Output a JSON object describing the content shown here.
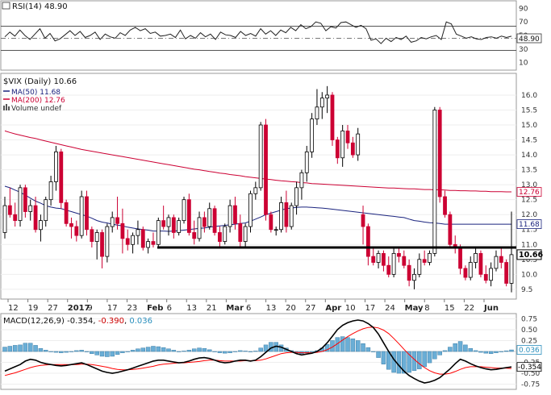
{
  "rsi_panel": {
    "label": "RSI(14) 48.90",
    "levels": [
      "90",
      "70",
      "50",
      "30",
      "10"
    ],
    "current": "48.90"
  },
  "price_panel": {
    "symbol_label": "$VIX (Daily) 10.66",
    "ma50_label": "MA(50) 11.68",
    "ma200_label": "MA(200) 12.76",
    "volume_label": "Volume undef",
    "current_price": "10.66",
    "ma50_value": "11.68",
    "ma200_value": "12.76"
  },
  "macd_panel": {
    "label_prefix": "MACD(12,26,9) ",
    "macd_value": "-0.354",
    "sep1": ", ",
    "signal_value": "-0.390",
    "sep2": ", ",
    "hist_value": "0.036",
    "current_hist": "0.036",
    "current_macd": "-0.354"
  },
  "date_axis": [
    "12",
    "19",
    "27",
    "2017",
    "9",
    "17",
    "23",
    "Feb",
    "6",
    "13",
    "21",
    "Mar",
    "6",
    "13",
    "20",
    "27",
    "Apr",
    "10",
    "17",
    "24",
    "May",
    "8",
    "15",
    "22",
    "Jun"
  ],
  "colors": {
    "up": "#ffffff",
    "down": "#cc0033",
    "ma50": "#1a237e",
    "ma200": "#cc0033",
    "support": "#000000",
    "hist": "#6aaed6",
    "macd": "#000000",
    "signal": "#ff0000"
  },
  "chart_data": [
    {
      "type": "line",
      "name": "RSI(14)",
      "ylim": [
        0,
        100
      ],
      "ticks": [
        90,
        70,
        50,
        30,
        10
      ],
      "values": [
        48,
        55,
        49,
        58,
        50,
        44,
        52,
        60,
        46,
        53,
        42,
        45,
        51,
        57,
        50,
        56,
        47,
        50,
        55,
        44,
        52,
        48,
        46,
        54,
        50,
        58,
        62,
        57,
        60,
        53,
        55,
        49,
        50,
        52,
        47,
        58,
        45,
        50,
        46,
        54,
        48,
        52,
        44,
        55,
        51,
        50,
        47,
        56,
        50,
        53,
        49,
        60,
        52,
        57,
        50,
        58,
        54,
        62,
        57,
        66,
        60,
        63,
        70,
        68,
        57,
        63,
        61,
        69,
        70,
        66,
        62,
        65,
        60,
        43,
        45,
        38,
        46,
        41,
        47,
        44,
        49,
        40,
        42,
        47,
        45,
        48,
        50,
        44,
        70,
        67,
        52,
        49,
        46,
        48,
        45,
        44,
        47,
        48,
        46,
        49,
        47,
        48.9
      ]
    },
    {
      "type": "candlestick",
      "name": "$VIX (Daily)",
      "ylim": [
        9.2,
        16.7
      ],
      "ticks": [
        9.5,
        10.0,
        10.5,
        11.0,
        11.5,
        12.0,
        12.5,
        13.0,
        13.5,
        14.0,
        14.5,
        15.0,
        15.5,
        16.0
      ],
      "support_level": 10.9,
      "ohlc": [
        [
          11.4,
          12.6,
          11.2,
          12.3
        ],
        [
          12.3,
          12.9,
          11.9,
          12.0
        ],
        [
          12.0,
          12.4,
          11.6,
          11.8
        ],
        [
          11.8,
          13.0,
          11.6,
          12.9
        ],
        [
          12.9,
          13.0,
          11.9,
          12.1
        ],
        [
          12.1,
          12.5,
          11.8,
          12.3
        ],
        [
          12.3,
          12.6,
          11.4,
          11.5
        ],
        [
          11.5,
          12.0,
          11.1,
          11.8
        ],
        [
          11.8,
          12.6,
          11.6,
          12.5
        ],
        [
          12.5,
          13.3,
          12.3,
          13.1
        ],
        [
          13.1,
          14.3,
          12.8,
          14.1
        ],
        [
          14.1,
          14.2,
          12.2,
          12.4
        ],
        [
          12.4,
          12.5,
          11.6,
          11.7
        ],
        [
          11.7,
          11.9,
          11.2,
          11.6
        ],
        [
          11.6,
          11.8,
          11.1,
          11.3
        ],
        [
          11.3,
          12.8,
          11.2,
          12.6
        ],
        [
          12.6,
          12.8,
          11.3,
          11.5
        ],
        [
          11.5,
          11.6,
          10.9,
          11.1
        ],
        [
          11.1,
          11.5,
          10.5,
          11.4
        ],
        [
          11.4,
          11.5,
          10.2,
          10.6
        ],
        [
          10.6,
          11.7,
          10.4,
          11.6
        ],
        [
          11.6,
          12.1,
          11.4,
          11.9
        ],
        [
          11.9,
          12.6,
          11.5,
          11.7
        ],
        [
          11.7,
          12.2,
          10.7,
          11.2
        ],
        [
          11.2,
          11.5,
          10.8,
          11.0
        ],
        [
          11.0,
          11.4,
          10.7,
          11.3
        ],
        [
          11.3,
          11.8,
          11.0,
          11.5
        ],
        [
          11.5,
          11.6,
          10.8,
          10.9
        ],
        [
          10.9,
          11.2,
          10.7,
          11.1
        ],
        [
          11.1,
          11.4,
          10.9,
          11.0
        ],
        [
          11.0,
          11.9,
          10.9,
          11.8
        ],
        [
          11.8,
          12.3,
          11.5,
          11.6
        ],
        [
          11.6,
          12.0,
          11.3,
          11.9
        ],
        [
          11.9,
          12.0,
          11.2,
          11.4
        ],
        [
          11.4,
          11.9,
          11.3,
          11.8
        ],
        [
          11.8,
          12.6,
          11.7,
          12.5
        ],
        [
          12.5,
          12.7,
          11.3,
          11.4
        ],
        [
          11.4,
          11.8,
          11.0,
          11.2
        ],
        [
          11.2,
          12.1,
          11.1,
          11.9
        ],
        [
          11.9,
          12.1,
          11.4,
          11.6
        ],
        [
          11.6,
          12.4,
          11.5,
          12.2
        ],
        [
          12.2,
          12.3,
          11.3,
          11.4
        ],
        [
          11.4,
          11.6,
          10.9,
          11.1
        ],
        [
          11.1,
          11.7,
          11.0,
          11.6
        ],
        [
          11.6,
          12.5,
          11.4,
          12.3
        ],
        [
          12.3,
          12.6,
          11.5,
          11.7
        ],
        [
          11.7,
          12.0,
          10.9,
          11.1
        ],
        [
          11.1,
          11.7,
          10.9,
          11.6
        ],
        [
          11.6,
          12.8,
          11.4,
          12.7
        ],
        [
          12.7,
          13.1,
          12.5,
          12.9
        ],
        [
          12.9,
          15.1,
          12.8,
          15.0
        ],
        [
          15.0,
          15.2,
          11.8,
          12.0
        ],
        [
          12.0,
          12.1,
          11.4,
          11.5
        ],
        [
          11.5,
          11.6,
          11.3,
          11.5
        ],
        [
          11.5,
          12.6,
          11.4,
          12.4
        ],
        [
          12.4,
          12.8,
          11.4,
          11.6
        ],
        [
          11.6,
          12.4,
          11.5,
          12.3
        ],
        [
          12.3,
          13.1,
          12.0,
          12.9
        ],
        [
          12.9,
          13.5,
          12.5,
          13.4
        ],
        [
          13.4,
          14.3,
          13.1,
          14.1
        ],
        [
          14.1,
          15.4,
          13.9,
          15.2
        ],
        [
          15.2,
          16.2,
          15.0,
          15.6
        ],
        [
          15.6,
          16.1,
          15.2,
          15.9
        ],
        [
          15.9,
          16.3,
          15.4,
          16.0
        ],
        [
          16.0,
          16.1,
          14.3,
          14.5
        ],
        [
          14.5,
          14.6,
          13.7,
          13.9
        ],
        [
          13.9,
          15.0,
          13.6,
          14.8
        ],
        [
          14.8,
          15.0,
          14.2,
          14.4
        ],
        [
          14.4,
          14.6,
          13.9,
          14.0
        ],
        [
          14.0,
          14.9,
          13.8,
          14.7
        ],
        [
          12.0,
          12.3,
          11.0,
          11.6
        ],
        [
          11.6,
          11.7,
          10.3,
          10.6
        ],
        [
          10.6,
          10.9,
          10.3,
          10.4
        ],
        [
          10.4,
          10.8,
          10.2,
          10.7
        ],
        [
          10.7,
          10.8,
          10.1,
          10.3
        ],
        [
          10.3,
          10.6,
          9.9,
          10.0
        ],
        [
          10.0,
          10.9,
          9.9,
          10.7
        ],
        [
          10.7,
          10.9,
          10.4,
          10.6
        ],
        [
          10.6,
          10.8,
          10.2,
          10.3
        ],
        [
          10.3,
          10.5,
          9.6,
          9.8
        ],
        [
          9.8,
          10.2,
          9.5,
          10.0
        ],
        [
          10.0,
          10.7,
          9.9,
          10.5
        ],
        [
          10.5,
          10.8,
          10.3,
          10.4
        ],
        [
          10.4,
          10.8,
          10.3,
          10.7
        ],
        [
          10.7,
          15.6,
          10.6,
          15.5
        ],
        [
          15.5,
          15.6,
          12.4,
          12.6
        ],
        [
          12.6,
          12.8,
          11.9,
          12.0
        ],
        [
          12.0,
          12.1,
          10.9,
          11.0
        ],
        [
          11.0,
          11.3,
          10.7,
          10.9
        ],
        [
          10.9,
          11.0,
          10.0,
          10.2
        ],
        [
          10.2,
          10.3,
          9.8,
          9.9
        ],
        [
          9.9,
          10.6,
          9.8,
          10.4
        ],
        [
          10.4,
          10.9,
          10.2,
          10.7
        ],
        [
          10.7,
          10.8,
          9.9,
          10.0
        ],
        [
          10.0,
          10.3,
          9.7,
          9.8
        ],
        [
          9.8,
          10.4,
          9.6,
          10.2
        ],
        [
          10.2,
          10.8,
          10.1,
          10.6
        ],
        [
          10.6,
          10.9,
          10.2,
          10.4
        ],
        [
          10.4,
          10.5,
          9.6,
          9.7
        ],
        [
          9.7,
          12.1,
          9.4,
          10.66
        ]
      ],
      "ma50": [
        12.95,
        12.9,
        12.82,
        12.75,
        12.65,
        12.55,
        12.45,
        12.38,
        12.3,
        12.25,
        12.22,
        12.2,
        12.15,
        12.1,
        12.05,
        12.0,
        11.95,
        11.88,
        11.8,
        11.75,
        11.72,
        11.68,
        11.65,
        11.62,
        11.58,
        11.55,
        11.52,
        11.5,
        11.48,
        11.45,
        11.45,
        11.45,
        11.44,
        11.45,
        11.46,
        11.48,
        11.5,
        11.52,
        11.54,
        11.55,
        11.58,
        11.6,
        11.62,
        11.64,
        11.66,
        11.68,
        11.7,
        11.72,
        11.78,
        11.85,
        11.92,
        12.0,
        12.05,
        12.1,
        12.15,
        12.2,
        12.22,
        12.24,
        12.25,
        12.25,
        12.24,
        12.23,
        12.22,
        12.2,
        12.18,
        12.16,
        12.14,
        12.12,
        12.1,
        12.08,
        12.06,
        12.04,
        12.02,
        12.0,
        11.98,
        11.96,
        11.94,
        11.92,
        11.9,
        11.85,
        11.8,
        11.78,
        11.75,
        11.73,
        11.72,
        11.7,
        11.68,
        11.68,
        11.68,
        11.68,
        11.68,
        11.68,
        11.68,
        11.68,
        11.68,
        11.68,
        11.68,
        11.68,
        11.68,
        11.68
      ],
      "ma200": [
        14.8,
        14.75,
        14.7,
        14.66,
        14.62,
        14.58,
        14.55,
        14.5,
        14.46,
        14.42,
        14.38,
        14.34,
        14.3,
        14.26,
        14.22,
        14.18,
        14.15,
        14.12,
        14.09,
        14.06,
        14.03,
        14.0,
        13.97,
        13.94,
        13.91,
        13.88,
        13.85,
        13.82,
        13.79,
        13.76,
        13.73,
        13.7,
        13.67,
        13.64,
        13.61,
        13.58,
        13.55,
        13.52,
        13.5,
        13.47,
        13.44,
        13.42,
        13.39,
        13.37,
        13.34,
        13.32,
        13.3,
        13.27,
        13.25,
        13.23,
        13.21,
        13.19,
        13.17,
        13.15,
        13.13,
        13.12,
        13.1,
        13.09,
        13.07,
        13.06,
        13.04,
        13.03,
        13.02,
        13.01,
        13.0,
        12.99,
        12.98,
        12.97,
        12.96,
        12.95,
        12.94,
        12.93,
        12.92,
        12.91,
        12.9,
        12.89,
        12.89,
        12.88,
        12.87,
        12.86,
        12.86,
        12.85,
        12.84,
        12.84,
        12.83,
        12.83,
        12.82,
        12.81,
        12.81,
        12.8,
        12.8,
        12.79,
        12.79,
        12.78,
        12.78,
        12.77,
        12.77,
        12.77,
        12.76,
        12.76
      ]
    },
    {
      "type": "line",
      "name": "MACD(12,26,9)",
      "ylim": [
        -0.85,
        0.85
      ],
      "ticks": [
        0.75,
        0.5,
        0.25,
        0.0,
        -0.25,
        -0.5,
        -0.75
      ],
      "macd": [
        -0.45,
        -0.4,
        -0.35,
        -0.3,
        -0.22,
        -0.18,
        -0.2,
        -0.25,
        -0.28,
        -0.3,
        -0.32,
        -0.33,
        -0.32,
        -0.3,
        -0.28,
        -0.26,
        -0.3,
        -0.35,
        -0.4,
        -0.45,
        -0.48,
        -0.5,
        -0.48,
        -0.45,
        -0.42,
        -0.38,
        -0.34,
        -0.3,
        -0.26,
        -0.22,
        -0.2,
        -0.2,
        -0.22,
        -0.24,
        -0.26,
        -0.25,
        -0.22,
        -0.18,
        -0.15,
        -0.14,
        -0.16,
        -0.2,
        -0.24,
        -0.26,
        -0.25,
        -0.22,
        -0.2,
        -0.2,
        -0.22,
        -0.2,
        -0.12,
        -0.02,
        0.08,
        0.12,
        0.1,
        0.05,
        0.0,
        -0.05,
        -0.08,
        -0.06,
        -0.04,
        0.0,
        0.08,
        0.2,
        0.35,
        0.5,
        0.6,
        0.66,
        0.7,
        0.72,
        0.7,
        0.64,
        0.55,
        0.4,
        0.2,
        0.0,
        -0.18,
        -0.32,
        -0.45,
        -0.55,
        -0.62,
        -0.68,
        -0.72,
        -0.7,
        -0.66,
        -0.6,
        -0.5,
        -0.4,
        -0.28,
        -0.18,
        -0.22,
        -0.28,
        -0.33,
        -0.37,
        -0.4,
        -0.42,
        -0.41,
        -0.39,
        -0.37,
        -0.354
      ],
      "signal": [
        -0.55,
        -0.52,
        -0.49,
        -0.45,
        -0.41,
        -0.37,
        -0.34,
        -0.32,
        -0.31,
        -0.3,
        -0.3,
        -0.3,
        -0.3,
        -0.3,
        -0.3,
        -0.29,
        -0.29,
        -0.3,
        -0.32,
        -0.34,
        -0.36,
        -0.39,
        -0.41,
        -0.42,
        -0.42,
        -0.41,
        -0.4,
        -0.38,
        -0.36,
        -0.34,
        -0.31,
        -0.29,
        -0.28,
        -0.27,
        -0.26,
        -0.26,
        -0.25,
        -0.24,
        -0.23,
        -0.21,
        -0.2,
        -0.2,
        -0.21,
        -0.22,
        -0.22,
        -0.22,
        -0.22,
        -0.21,
        -0.21,
        -0.21,
        -0.2,
        -0.17,
        -0.13,
        -0.09,
        -0.05,
        -0.03,
        -0.02,
        -0.02,
        -0.03,
        -0.03,
        -0.03,
        -0.02,
        0.0,
        0.04,
        0.1,
        0.18,
        0.26,
        0.34,
        0.41,
        0.47,
        0.52,
        0.55,
        0.56,
        0.54,
        0.49,
        0.41,
        0.3,
        0.18,
        0.05,
        -0.07,
        -0.18,
        -0.28,
        -0.37,
        -0.44,
        -0.49,
        -0.52,
        -0.52,
        -0.5,
        -0.46,
        -0.41,
        -0.37,
        -0.35,
        -0.35,
        -0.35,
        -0.36,
        -0.37,
        -0.38,
        -0.38,
        -0.385,
        -0.39
      ],
      "histogram": [
        0.1,
        0.12,
        0.14,
        0.15,
        0.19,
        0.19,
        0.14,
        0.07,
        0.03,
        0.0,
        -0.02,
        -0.03,
        -0.02,
        0.0,
        0.02,
        0.03,
        -0.01,
        -0.05,
        -0.08,
        -0.11,
        -0.12,
        -0.11,
        -0.07,
        -0.03,
        0.0,
        0.03,
        0.06,
        0.08,
        0.1,
        0.12,
        0.11,
        0.09,
        0.06,
        0.03,
        0.0,
        0.01,
        0.03,
        0.06,
        0.08,
        0.07,
        0.04,
        0.0,
        -0.03,
        -0.04,
        -0.03,
        0.0,
        0.02,
        0.01,
        -0.01,
        0.01,
        0.08,
        0.15,
        0.21,
        0.21,
        0.15,
        0.08,
        0.02,
        -0.03,
        -0.05,
        -0.03,
        -0.01,
        0.02,
        0.08,
        0.16,
        0.25,
        0.32,
        0.34,
        0.32,
        0.29,
        0.25,
        0.18,
        0.09,
        -0.01,
        -0.14,
        -0.29,
        -0.41,
        -0.48,
        -0.5,
        -0.5,
        -0.48,
        -0.44,
        -0.4,
        -0.35,
        -0.26,
        -0.17,
        -0.08,
        0.02,
        0.1,
        0.18,
        0.23,
        0.15,
        0.07,
        0.02,
        -0.02,
        -0.04,
        -0.05,
        -0.03,
        -0.01,
        0.015,
        0.036
      ]
    }
  ]
}
